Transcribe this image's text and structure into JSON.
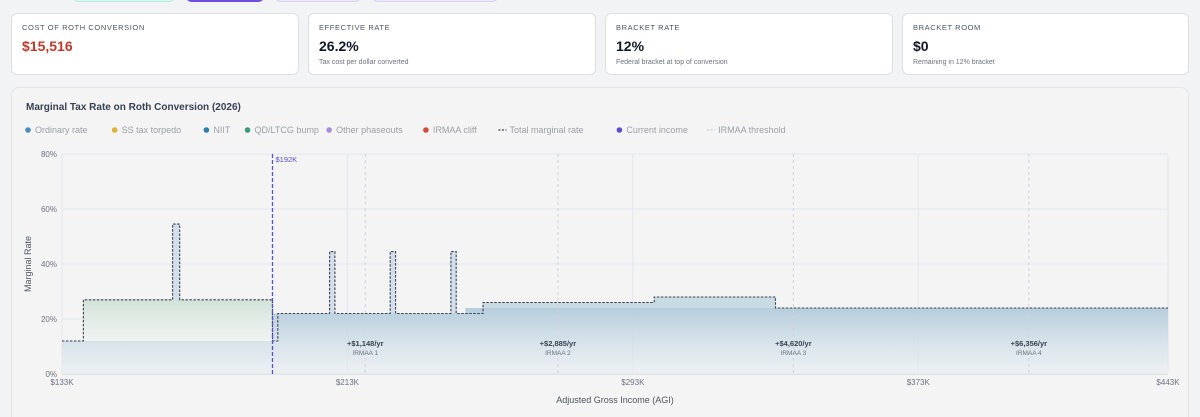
{
  "top_tabs": [
    {
      "color": "#dff6f3",
      "border": "#b7ece5"
    },
    {
      "color": "#6d4ee0",
      "border": "#6d4ee0"
    },
    {
      "color": "#ebe7fb",
      "border": "#d8d0f6"
    },
    {
      "color": "#ebe7fb",
      "border": "#d8d0f6"
    }
  ],
  "stats": [
    {
      "label": "COST OF ROTH CONVERSION",
      "value": "$15,516",
      "sub": "",
      "accent": "#c0392b"
    },
    {
      "label": "EFFECTIVE RATE",
      "value": "26.2%",
      "sub": "Tax cost per dollar converted"
    },
    {
      "label": "BRACKET RATE",
      "value": "12%",
      "sub": "Federal bracket at top of conversion"
    },
    {
      "label": "BRACKET ROOM",
      "value": "$0",
      "sub": "Remaining in 12% bracket"
    }
  ],
  "chart_data": {
    "type": "area",
    "title": "Marginal Tax Rate on Roth Conversion (2026)",
    "xlabel": "Adjusted Gross Income (AGI)",
    "ylabel": "Marginal Rate",
    "xlim": [
      133,
      443
    ],
    "ylim": [
      0,
      80
    ],
    "x_ticks": [
      {
        "value": 133,
        "label": "$133K"
      },
      {
        "value": 213,
        "label": "$213K"
      },
      {
        "value": 293,
        "label": "$293K"
      },
      {
        "value": 373,
        "label": "$373K"
      },
      {
        "value": 443,
        "label": "$443K"
      }
    ],
    "y_ticks": [
      {
        "value": 0,
        "label": "0%"
      },
      {
        "value": 20,
        "label": "20%"
      },
      {
        "value": 40,
        "label": "40%"
      },
      {
        "value": 60,
        "label": "60%"
      },
      {
        "value": 80,
        "label": "80%"
      }
    ],
    "grid": true,
    "legend": [
      {
        "name": "Ordinary rate",
        "color": "#4a8db8",
        "kind": "dot"
      },
      {
        "name": "SS tax torpedo",
        "color": "#e0b23a",
        "kind": "dot"
      },
      {
        "name": "NIIT",
        "color": "#2e7ea6",
        "kind": "dot"
      },
      {
        "name": "QD/LTCG bump",
        "color": "#3a9a7a",
        "kind": "dot"
      },
      {
        "name": "Other phaseouts",
        "color": "#a78bdb",
        "kind": "dot"
      },
      {
        "name": "IRMAA cliff",
        "color": "#d24b3e",
        "kind": "dot"
      },
      {
        "name": "Total marginal rate",
        "color": "#374151",
        "kind": "dash"
      },
      {
        "name": "Current income",
        "color": "#5b4fd1",
        "kind": "dot"
      },
      {
        "name": "IRMAA threshold",
        "color": "#c9cdd3",
        "kind": "dash"
      }
    ],
    "series": [
      {
        "name": "Ordinary rate",
        "color": "#b9cfdc",
        "steps": [
          [
            133,
            12
          ],
          [
            192,
            12
          ],
          [
            192,
            22
          ],
          [
            246,
            22
          ],
          [
            246,
            24
          ],
          [
            443,
            24
          ]
        ]
      },
      {
        "name": "QD/LTCG bump",
        "color": "#d3e3da",
        "steps": [
          [
            133,
            0
          ],
          [
            139,
            15
          ],
          [
            192,
            15
          ],
          [
            192,
            0
          ],
          [
            443,
            0
          ]
        ]
      },
      {
        "name": "Total marginal rate",
        "color": "#374151",
        "steps": [
          [
            133,
            12
          ],
          [
            139,
            12
          ],
          [
            139,
            27
          ],
          [
            164,
            27
          ],
          [
            164,
            54.5
          ],
          [
            166,
            54.5
          ],
          [
            166,
            27
          ],
          [
            192,
            27
          ],
          [
            192,
            12
          ],
          [
            193.5,
            12
          ],
          [
            193.5,
            22
          ],
          [
            208,
            22
          ],
          [
            208,
            44.5
          ],
          [
            209.5,
            44.5
          ],
          [
            209.5,
            22
          ],
          [
            225,
            22
          ],
          [
            225,
            44.5
          ],
          [
            226.5,
            44.5
          ],
          [
            226.5,
            22
          ],
          [
            242,
            22
          ],
          [
            242,
            44.5
          ],
          [
            243.5,
            44.5
          ],
          [
            243.5,
            22
          ],
          [
            251,
            22
          ],
          [
            251,
            26
          ],
          [
            299,
            26
          ],
          [
            299,
            28
          ],
          [
            333,
            28
          ],
          [
            333,
            24
          ],
          [
            443,
            24
          ]
        ]
      }
    ],
    "current_income": {
      "value": 192,
      "label": "$192K"
    },
    "irmaa_thresholds": [
      {
        "value": 218,
        "amount": "+$1,148/yr",
        "tier": "IRMAA 1"
      },
      {
        "value": 272,
        "amount": "+$2,885/yr",
        "tier": "IRMAA 2"
      },
      {
        "value": 338,
        "amount": "+$4,620/yr",
        "tier": "IRMAA 3"
      },
      {
        "value": 404,
        "amount": "+$6,356/yr",
        "tier": "IRMAA 4"
      }
    ]
  }
}
